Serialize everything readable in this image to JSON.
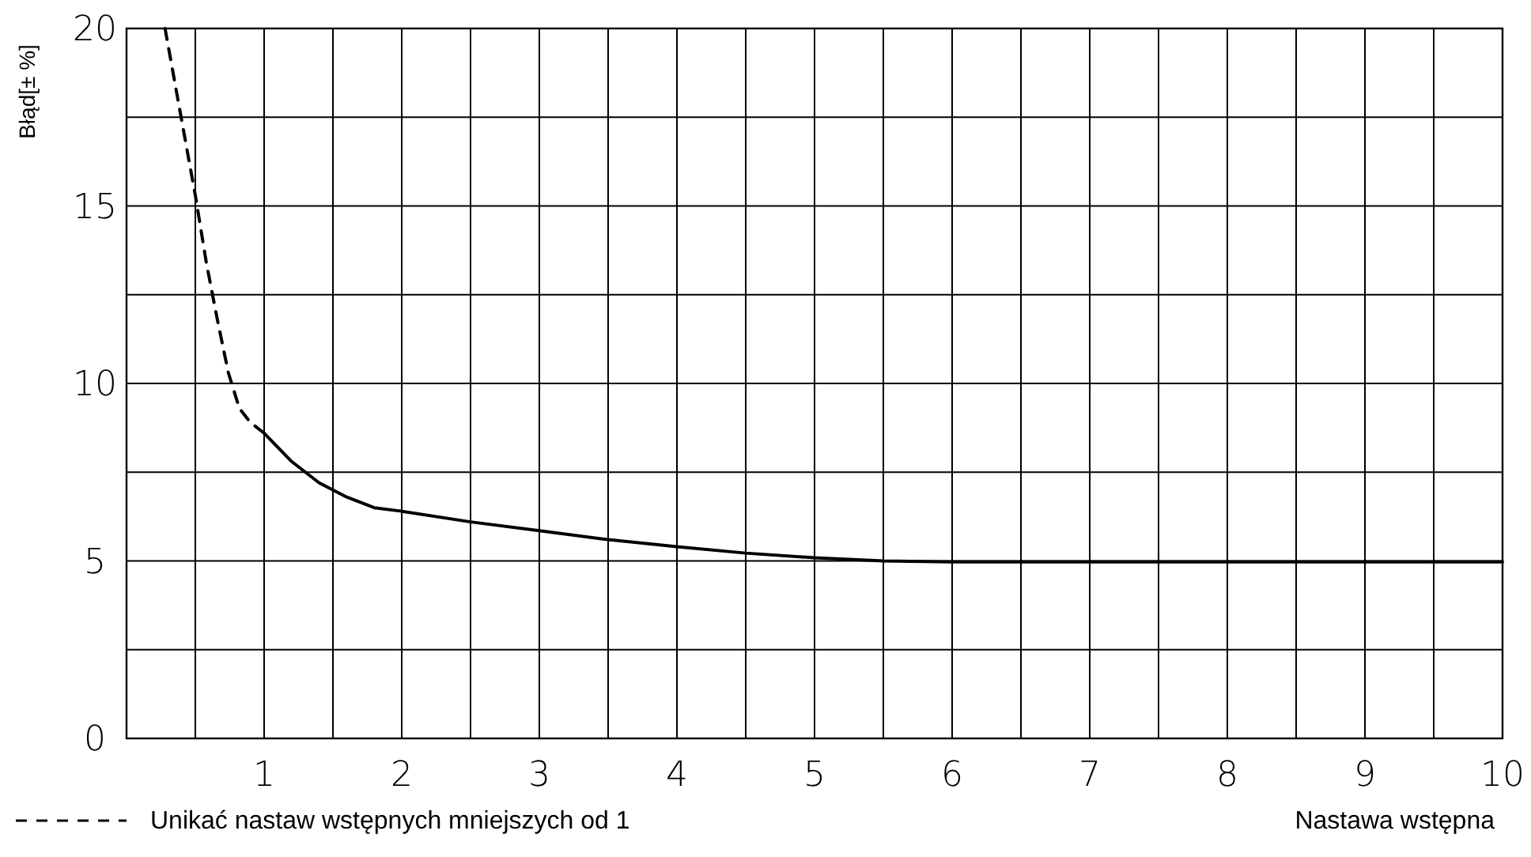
{
  "chart_data": {
    "type": "line",
    "xlabel": "Nastawa wstępna",
    "ylabel": "Błąd[± %]",
    "xlim": [
      0,
      10
    ],
    "ylim": [
      0,
      20
    ],
    "xticks": [
      {
        "value": 0.5,
        "label": null
      },
      1,
      {
        "value": 1.5,
        "label": null
      },
      2,
      {
        "value": 2.5,
        "label": null
      },
      3,
      {
        "value": 3.5,
        "label": null
      },
      4,
      {
        "value": 4.5,
        "label": null
      },
      5,
      {
        "value": 5.5,
        "label": null
      },
      6,
      {
        "value": 6.5,
        "label": null
      },
      7,
      {
        "value": 7.5,
        "label": null
      },
      8,
      {
        "value": 8.5,
        "label": null
      },
      9,
      {
        "value": 9.5,
        "label": null
      },
      10
    ],
    "yticks": [
      0,
      {
        "value": 2.5,
        "label": null
      },
      5,
      {
        "value": 7.5,
        "label": null
      },
      10,
      {
        "value": 12.5,
        "label": null
      },
      15,
      {
        "value": 17.5,
        "label": null
      },
      20
    ],
    "grid": true,
    "legend": "bottom left",
    "marker": "none",
    "series": [
      {
        "name": "Unikać nastaw wstępnych mniejszych od 1",
        "color": "#000000",
        "line_style": "dashed",
        "x": [
          0.28,
          0.35,
          0.42,
          0.5,
          0.58,
          0.66,
          0.74,
          0.82,
          0.9,
          1.0
        ],
        "values": [
          20,
          18.5,
          17,
          15.3,
          13.4,
          11.8,
          10.3,
          9.3,
          8.9,
          8.6
        ]
      },
      {
        "color": "#000000",
        "line_style": "solid",
        "x": [
          1.0,
          1.2,
          1.4,
          1.6,
          1.8,
          2.0,
          2.5,
          3,
          3.5,
          4,
          4.5,
          5,
          5.5,
          6,
          7,
          8,
          9,
          10
        ],
        "values": [
          8.6,
          7.8,
          7.2,
          6.8,
          6.5,
          6.4,
          6.1,
          5.85,
          5.6,
          5.4,
          5.22,
          5.09,
          5.0,
          4.97,
          4.97,
          4.97,
          4.97,
          4.97
        ]
      }
    ]
  }
}
